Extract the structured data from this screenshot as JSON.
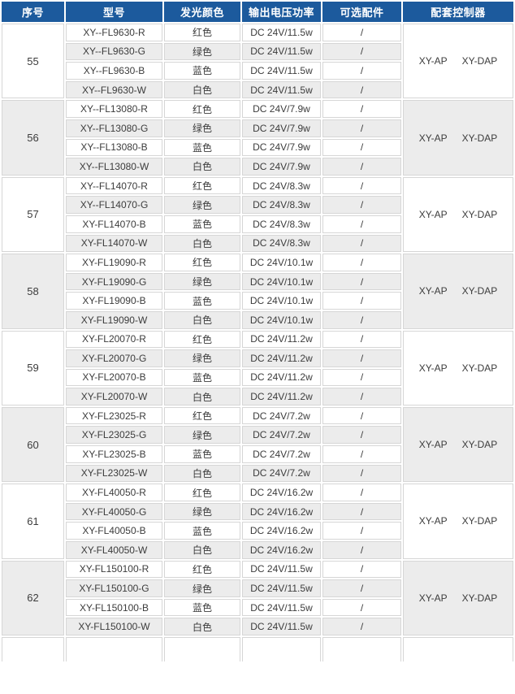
{
  "table": {
    "columns": [
      "序号",
      "型号",
      "发光颜色",
      "输出电压功率",
      "可选配件",
      "配套控制器"
    ],
    "groups": [
      {
        "serial": "55",
        "controllers": [
          "XY-AP",
          "XY-DAP"
        ],
        "rows": [
          {
            "model": "XY--FL9630-R",
            "color": "红色",
            "power": "DC 24V/11.5w",
            "accessory": "/"
          },
          {
            "model": "XY--FL9630-G",
            "color": "绿色",
            "power": "DC 24V/11.5w",
            "accessory": "/"
          },
          {
            "model": "XY--FL9630-B",
            "color": "蓝色",
            "power": "DC 24V/11.5w",
            "accessory": "/"
          },
          {
            "model": "XY--FL9630-W",
            "color": "白色",
            "power": "DC 24V/11.5w",
            "accessory": "/"
          }
        ]
      },
      {
        "serial": "56",
        "controllers": [
          "XY-AP",
          "XY-DAP"
        ],
        "rows": [
          {
            "model": "XY--FL13080-R",
            "color": "红色",
            "power": "DC 24V/7.9w",
            "accessory": "/"
          },
          {
            "model": "XY--FL13080-G",
            "color": "绿色",
            "power": "DC 24V/7.9w",
            "accessory": "/"
          },
          {
            "model": "XY--FL13080-B",
            "color": "蓝色",
            "power": "DC 24V/7.9w",
            "accessory": "/"
          },
          {
            "model": "XY--FL13080-W",
            "color": "白色",
            "power": "DC 24V/7.9w",
            "accessory": "/"
          }
        ]
      },
      {
        "serial": "57",
        "controllers": [
          "XY-AP",
          "XY-DAP"
        ],
        "rows": [
          {
            "model": "XY--FL14070-R",
            "color": "红色",
            "power": "DC 24V/8.3w",
            "accessory": "/"
          },
          {
            "model": "XY--FL14070-G",
            "color": "绿色",
            "power": "DC 24V/8.3w",
            "accessory": "/"
          },
          {
            "model": "XY-FL14070-B",
            "color": "蓝色",
            "power": "DC 24V/8.3w",
            "accessory": "/"
          },
          {
            "model": "XY-FL14070-W",
            "color": "白色",
            "power": "DC 24V/8.3w",
            "accessory": "/"
          }
        ]
      },
      {
        "serial": "58",
        "controllers": [
          "XY-AP",
          "XY-DAP"
        ],
        "rows": [
          {
            "model": "XY-FL19090-R",
            "color": "红色",
            "power": "DC 24V/10.1w",
            "accessory": "/"
          },
          {
            "model": "XY-FL19090-G",
            "color": "绿色",
            "power": "DC 24V/10.1w",
            "accessory": "/"
          },
          {
            "model": "XY-FL19090-B",
            "color": "蓝色",
            "power": "DC 24V/10.1w",
            "accessory": "/"
          },
          {
            "model": "XY-FL19090-W",
            "color": "白色",
            "power": "DC 24V/10.1w",
            "accessory": "/"
          }
        ]
      },
      {
        "serial": "59",
        "controllers": [
          "XY-AP",
          "XY-DAP"
        ],
        "rows": [
          {
            "model": "XY-FL20070-R",
            "color": "红色",
            "power": "DC 24V/11.2w",
            "accessory": "/"
          },
          {
            "model": "XY-FL20070-G",
            "color": "绿色",
            "power": "DC 24V/11.2w",
            "accessory": "/"
          },
          {
            "model": "XY-FL20070-B",
            "color": "蓝色",
            "power": "DC 24V/11.2w",
            "accessory": "/"
          },
          {
            "model": "XY-FL20070-W",
            "color": "白色",
            "power": "DC 24V/11.2w",
            "accessory": "/"
          }
        ]
      },
      {
        "serial": "60",
        "controllers": [
          "XY-AP",
          "XY-DAP"
        ],
        "rows": [
          {
            "model": "XY-FL23025-R",
            "color": "红色",
            "power": "DC 24V/7.2w",
            "accessory": "/"
          },
          {
            "model": "XY-FL23025-G",
            "color": "绿色",
            "power": "DC 24V/7.2w",
            "accessory": "/"
          },
          {
            "model": "XY-FL23025-B",
            "color": "蓝色",
            "power": "DC 24V/7.2w",
            "accessory": "/"
          },
          {
            "model": "XY-FL23025-W",
            "color": "白色",
            "power": "DC 24V/7.2w",
            "accessory": "/"
          }
        ]
      },
      {
        "serial": "61",
        "controllers": [
          "XY-AP",
          "XY-DAP"
        ],
        "rows": [
          {
            "model": "XY-FL40050-R",
            "color": "红色",
            "power": "DC 24V/16.2w",
            "accessory": "/"
          },
          {
            "model": "XY-FL40050-G",
            "color": "绿色",
            "power": "DC 24V/16.2w",
            "accessory": "/"
          },
          {
            "model": "XY-FL40050-B",
            "color": "蓝色",
            "power": "DC 24V/16.2w",
            "accessory": "/"
          },
          {
            "model": "XY-FL40050-W",
            "color": "白色",
            "power": "DC 24V/16.2w",
            "accessory": "/"
          }
        ]
      },
      {
        "serial": "62",
        "controllers": [
          "XY-AP",
          "XY-DAP"
        ],
        "rows": [
          {
            "model": "XY-FL150100-R",
            "color": "红色",
            "power": "DC 24V/11.5w",
            "accessory": "/"
          },
          {
            "model": "XY-FL150100-G",
            "color": "绿色",
            "power": "DC 24V/11.5w",
            "accessory": "/"
          },
          {
            "model": "XY-FL150100-B",
            "color": "蓝色",
            "power": "DC 24V/11.5w",
            "accessory": "/"
          },
          {
            "model": "XY-FL150100-W",
            "color": "白色",
            "power": "DC 24V/11.5w",
            "accessory": "/"
          }
        ]
      }
    ]
  },
  "colors": {
    "header_bg": "#1c5a9d",
    "header_text": "#ffffff",
    "row_alt_bg": "#ececec",
    "cell_border": "#d6d6d6",
    "body_text": "#3c3c3c"
  }
}
